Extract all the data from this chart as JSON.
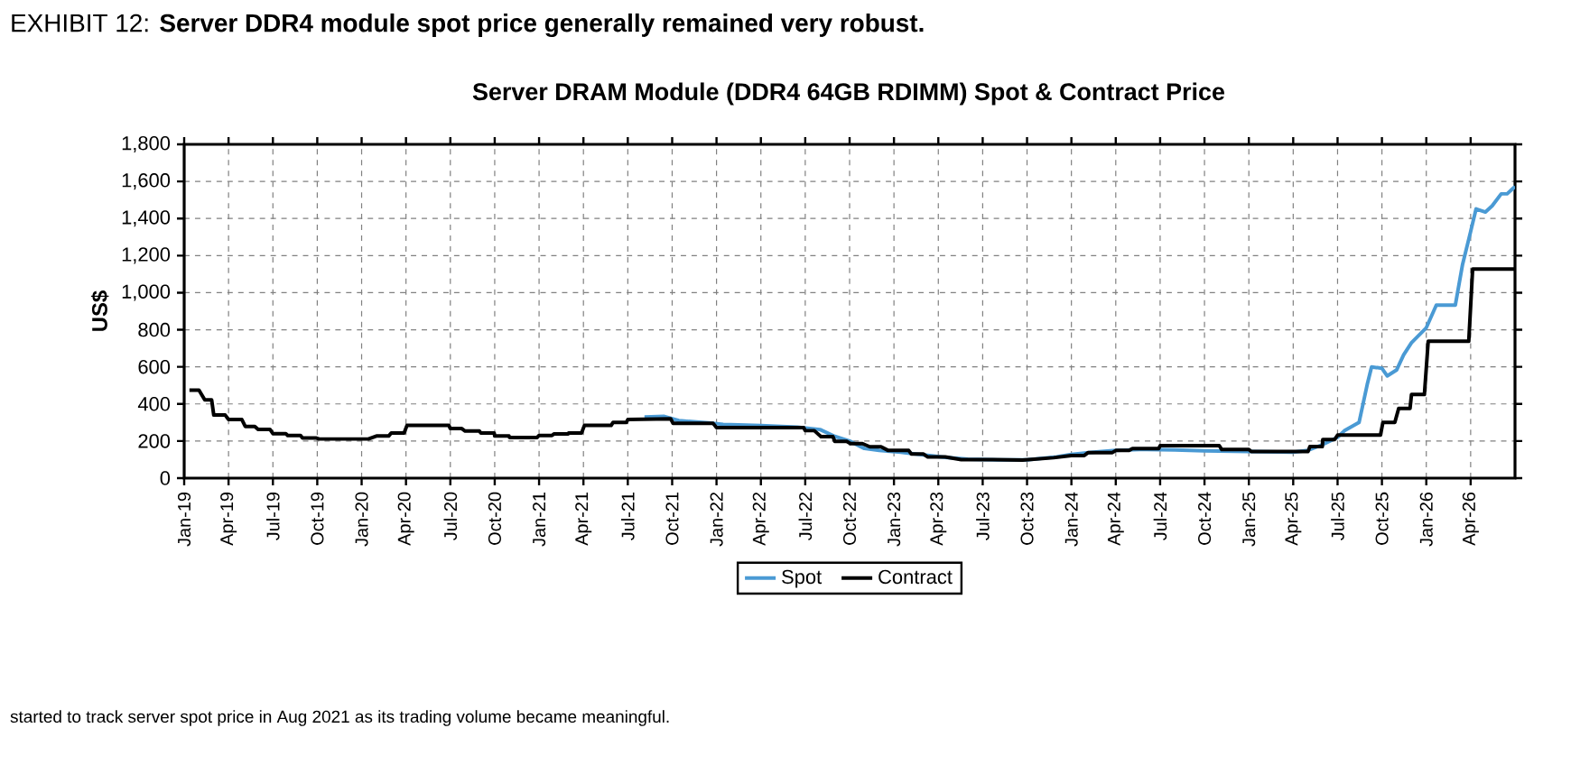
{
  "chart_data": {
    "type": "line",
    "title": "EXHIBIT 12: **Server DDR4 module spot price generally remained very robust.**",
    "subtitle": "Server DRAM Module (DDR4 64GB RDIMM) Spot & Contract Price",
    "ylabel": "US$",
    "annotations": [
      "started to track server spot price in Aug 2021 as its trading volume became meaningful."
    ],
    "xlim": [
      "2019-01",
      "2026-07"
    ],
    "xticks": [
      {
        "value": "2019-01",
        "label": "Jan-19"
      },
      {
        "value": "2019-04",
        "label": "Apr-19"
      },
      {
        "value": "2019-07",
        "label": "Jul-19"
      },
      {
        "value": "2019-10",
        "label": "Oct-19"
      },
      {
        "value": "2020-01",
        "label": "Jan-20"
      },
      {
        "value": "2020-04",
        "label": "Apr-20"
      },
      {
        "value": "2020-07",
        "label": "Jul-20"
      },
      {
        "value": "2020-10",
        "label": "Oct-20"
      },
      {
        "value": "2021-01",
        "label": "Jan-21"
      },
      {
        "value": "2021-04",
        "label": "Apr-21"
      },
      {
        "value": "2021-07",
        "label": "Jul-21"
      },
      {
        "value": "2021-10",
        "label": "Oct-21"
      },
      {
        "value": "2022-01",
        "label": "Jan-22"
      },
      {
        "value": "2022-04",
        "label": "Apr-22"
      },
      {
        "value": "2022-07",
        "label": "Jul-22"
      },
      {
        "value": "2022-10",
        "label": "Oct-22"
      },
      {
        "value": "2023-01",
        "label": "Jan-23"
      },
      {
        "value": "2023-04",
        "label": "Apr-23"
      },
      {
        "value": "2023-07",
        "label": "Jul-23"
      },
      {
        "value": "2023-10",
        "label": "Oct-23"
      },
      {
        "value": "2024-01",
        "label": "Jan-24"
      },
      {
        "value": "2024-04",
        "label": "Apr-24"
      },
      {
        "value": "2024-07",
        "label": "Jul-24"
      },
      {
        "value": "2024-10",
        "label": "Oct-24"
      },
      {
        "value": "2025-01",
        "label": "Jan-25"
      },
      {
        "value": "2025-04",
        "label": "Apr-25"
      },
      {
        "value": "2025-07",
        "label": "Jul-25"
      },
      {
        "value": "2025-10",
        "label": "Oct-25"
      },
      {
        "value": "2026-01",
        "label": "Jan-26"
      },
      {
        "value": "2026-04",
        "label": "Apr-26"
      }
    ],
    "ylim": [
      0,
      1800
    ],
    "yticks": [
      0,
      {
        "value": 200,
        "label": "200"
      },
      {
        "value": 400,
        "label": "400"
      },
      {
        "value": 600,
        "label": "600"
      },
      {
        "value": 800,
        "label": "800"
      },
      {
        "value": 1000,
        "label": "1,000"
      },
      {
        "value": 1200,
        "label": "1,200"
      },
      {
        "value": 1400,
        "label": "1,400"
      },
      {
        "value": 1600,
        "label": "1,600"
      },
      {
        "value": 1800,
        "label": "1,800"
      }
    ],
    "grid": true,
    "legend": "bottom",
    "series": [
      {
        "name": "Spot",
        "color": "#4a9ad4",
        "x": [
          "2021-08-05",
          "2021-09-15",
          "2021-10-15",
          "2021-12-15",
          "2022-01-15",
          "2022-04-01",
          "2022-06-15",
          "2022-08-01",
          "2022-09-01",
          "2022-10-01",
          "2022-11-01",
          "2022-12-01",
          "2023-01-15",
          "2023-03-01",
          "2023-04-15",
          "2023-06-01",
          "2023-08-01",
          "2023-10-01",
          "2023-12-01",
          "2024-01-01",
          "2024-02-15",
          "2024-04-01",
          "2024-06-01",
          "2024-08-01",
          "2024-10-01",
          "2024-12-01",
          "2025-02-01",
          "2025-04-01",
          "2025-05-01",
          "2025-05-31",
          "2025-07-01",
          "2025-07-15",
          "2025-08-15",
          "2025-09-01",
          "2025-09-10",
          "2025-10-01",
          "2025-10-12",
          "2025-11-01",
          "2025-11-15",
          "2025-12-01",
          "2026-01-01",
          "2026-01-22",
          "2026-02-28",
          "2026-03-15",
          "2026-04-01",
          "2026-04-12",
          "2026-05-01",
          "2026-05-15",
          "2026-06-03",
          "2026-06-15",
          "2026-07-01"
        ],
        "values": [
          330,
          333,
          310,
          298,
          290,
          283,
          275,
          262,
          225,
          200,
          160,
          150,
          140,
          125,
          112,
          102,
          99,
          98,
          115,
          128,
          140,
          150,
          155,
          152,
          147,
          145,
          142,
          140,
          150,
          180,
          220,
          255,
          300,
          503,
          600,
          592,
          551,
          584,
          665,
          730,
          811,
          933,
          933,
          1152,
          1330,
          1452,
          1435,
          1468,
          1533,
          1533,
          1573
        ]
      },
      {
        "name": "Contract",
        "color": "#000000",
        "x": [
          "2019-01-12",
          "2019-02-01",
          "2019-02-12",
          "2019-02-25",
          "2019-03-01",
          "2019-03-25",
          "2019-04-01",
          "2019-04-28",
          "2019-05-05",
          "2019-05-25",
          "2019-06-01",
          "2019-06-25",
          "2019-07-01",
          "2019-07-28",
          "2019-08-01",
          "2019-08-28",
          "2019-09-01",
          "2019-09-28",
          "2019-10-05",
          "2020-01-15",
          "2020-02-01",
          "2020-02-25",
          "2020-03-01",
          "2020-03-28",
          "2020-04-03",
          "2020-06-28",
          "2020-07-01",
          "2020-07-25",
          "2020-08-01",
          "2020-08-31",
          "2020-09-03",
          "2020-09-30",
          "2020-10-01",
          "2020-10-31",
          "2020-11-01",
          "2020-12-28",
          "2021-01-01",
          "2021-01-28",
          "2021-02-01",
          "2021-02-28",
          "2021-03-01",
          "2021-03-28",
          "2021-04-03",
          "2021-05-28",
          "2021-06-01",
          "2021-06-28",
          "2021-07-01",
          "2021-09-28",
          "2021-10-03",
          "2021-12-25",
          "2022-01-01",
          "2022-06-28",
          "2022-07-01",
          "2022-07-20",
          "2022-08-03",
          "2022-08-28",
          "2022-09-01",
          "2022-09-25",
          "2022-10-03",
          "2022-10-28",
          "2022-11-12",
          "2022-12-05",
          "2022-12-20",
          "2023-02-01",
          "2023-02-06",
          "2023-03-01",
          "2023-03-10",
          "2023-04-15",
          "2023-05-18",
          "2023-07-22",
          "2023-09-22",
          "2023-11-25",
          "2024-01-01",
          "2024-01-28",
          "2024-02-05",
          "2024-03-25",
          "2024-04-01",
          "2024-04-28",
          "2024-05-05",
          "2024-06-28",
          "2024-07-01",
          "2024-11-01",
          "2024-11-06",
          "2025-01-01",
          "2025-01-06",
          "2025-05-01",
          "2025-05-05",
          "2025-05-31",
          "2025-06-01",
          "2025-06-25",
          "2025-07-01",
          "2025-09-28",
          "2025-10-03",
          "2025-10-28",
          "2025-11-05",
          "2025-11-28",
          "2025-12-01",
          "2025-12-28",
          "2026-01-05",
          "2026-03-28",
          "2026-04-05",
          "2026-07-01"
        ],
        "values": [
          474,
          474,
          422,
          422,
          340,
          340,
          316,
          316,
          279,
          279,
          263,
          263,
          240,
          240,
          230,
          230,
          217,
          217,
          211,
          211,
          227,
          227,
          243,
          243,
          284,
          284,
          267,
          267,
          254,
          254,
          243,
          243,
          227,
          227,
          219,
          219,
          230,
          230,
          238,
          238,
          243,
          243,
          284,
          284,
          300,
          300,
          316,
          320,
          295,
          295,
          272,
          272,
          256,
          256,
          224,
          224,
          198,
          198,
          186,
          186,
          169,
          169,
          149,
          149,
          130,
          130,
          114,
          114,
          100,
          100,
          97,
          110,
          122,
          122,
          138,
          138,
          149,
          149,
          159,
          159,
          175,
          175,
          154,
          154,
          143,
          143,
          170,
          170,
          208,
          208,
          232,
          232,
          300,
          300,
          376,
          376,
          451,
          451,
          738,
          738,
          1127,
          1127
        ]
      }
    ]
  }
}
